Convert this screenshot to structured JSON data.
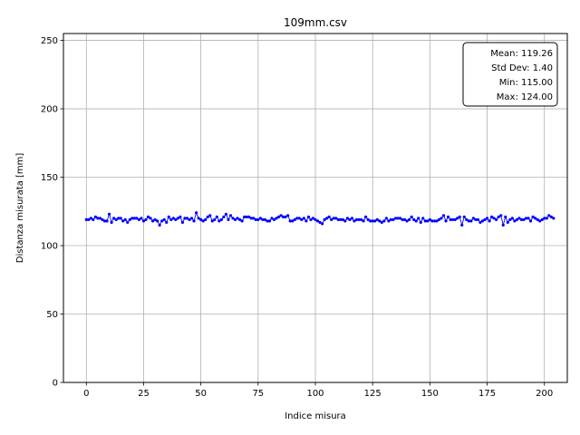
{
  "chart_data": {
    "type": "line",
    "title": "109mm.csv",
    "xlabel": "Indice misura",
    "ylabel": "Distanza misurata [mm]",
    "xlim": [
      -10,
      210
    ],
    "ylim": [
      0,
      255
    ],
    "xticks": [
      0,
      25,
      50,
      75,
      100,
      125,
      150,
      175,
      200
    ],
    "yticks": [
      0,
      50,
      100,
      150,
      200,
      250
    ],
    "grid": true,
    "series_color": "#0000ff",
    "series": [
      {
        "values": [
          119,
          119,
          120,
          119,
          121,
          120,
          120,
          119,
          118,
          118,
          123,
          117,
          120,
          119,
          120,
          120,
          118,
          119,
          117,
          119,
          120,
          120,
          120,
          119,
          120,
          118,
          119,
          121,
          120,
          118,
          119,
          118,
          115,
          118,
          119,
          117,
          121,
          119,
          120,
          119,
          120,
          121,
          117,
          120,
          120,
          119,
          120,
          118,
          124,
          120,
          119,
          118,
          119,
          121,
          122,
          118,
          119,
          121,
          118,
          119,
          121,
          123,
          119,
          122,
          120,
          119,
          120,
          119,
          118,
          121,
          121,
          121,
          120,
          120,
          119,
          119,
          120,
          119,
          119,
          118,
          118,
          120,
          119,
          120,
          121,
          122,
          121,
          121,
          122,
          118,
          118,
          119,
          120,
          120,
          119,
          120,
          118,
          121,
          119,
          120,
          119,
          118,
          117,
          116,
          119,
          120,
          121,
          119,
          120,
          120,
          119,
          119,
          119,
          118,
          120,
          119,
          120,
          118,
          119,
          119,
          119,
          118,
          121,
          119,
          118,
          118,
          118,
          119,
          118,
          117,
          118,
          120,
          118,
          119,
          119,
          120,
          120,
          120,
          119,
          119,
          118,
          119,
          121,
          119,
          118,
          120,
          117,
          120,
          118,
          118,
          119,
          118,
          118,
          118,
          119,
          120,
          122,
          118,
          121,
          119,
          119,
          119,
          120,
          121,
          115,
          121,
          119,
          118,
          118,
          120,
          119,
          119,
          117,
          118,
          119,
          120,
          118,
          121,
          120,
          119,
          121,
          122,
          115,
          121,
          117,
          119,
          120,
          118,
          119,
          120,
          119,
          119,
          120,
          120,
          118,
          121,
          120,
          119,
          118,
          119,
          120,
          120,
          122,
          121,
          120
        ]
      }
    ]
  },
  "stats": {
    "mean": "Mean: 119.26",
    "std": "Std Dev: 1.40",
    "min": "Min: 115.00",
    "max": "Max: 124.00"
  }
}
